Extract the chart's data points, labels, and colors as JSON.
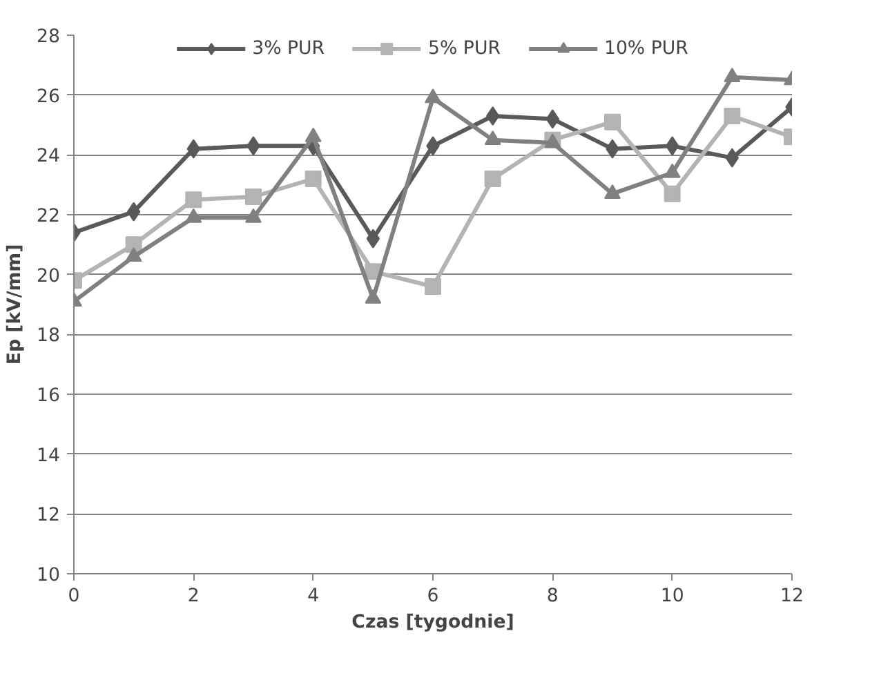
{
  "chart_data": {
    "type": "line",
    "xlabel": "Czas [tygodnie]",
    "ylabel": "Ep [kV/mm]",
    "x": [
      0,
      1,
      2,
      3,
      4,
      5,
      6,
      7,
      8,
      9,
      10,
      11,
      12
    ],
    "series": [
      {
        "name": "3% PUR",
        "color": "#595959",
        "marker": "diamond",
        "values": [
          21.4,
          22.1,
          24.2,
          24.3,
          24.3,
          21.2,
          24.3,
          25.3,
          25.2,
          24.2,
          24.3,
          23.9,
          25.6
        ]
      },
      {
        "name": "5% PUR",
        "color": "#b3b3b3",
        "marker": "square",
        "values": [
          19.8,
          21.0,
          22.5,
          22.6,
          23.2,
          20.1,
          19.6,
          23.2,
          24.5,
          25.1,
          22.7,
          25.3,
          24.6
        ]
      },
      {
        "name": "10% PUR",
        "color": "#808080",
        "marker": "triangle",
        "values": [
          19.1,
          20.6,
          21.9,
          21.9,
          24.6,
          19.2,
          25.9,
          24.5,
          24.4,
          22.7,
          23.4,
          26.6,
          26.5
        ]
      }
    ],
    "xlim": [
      0,
      12
    ],
    "xticks": [
      0,
      2,
      4,
      6,
      8,
      10,
      12
    ],
    "ylim": [
      10,
      28
    ],
    "yticks": [
      10,
      12,
      14,
      16,
      18,
      20,
      22,
      24,
      26,
      28
    ],
    "grid": "y",
    "legend": "top",
    "line_style": "solid"
  }
}
